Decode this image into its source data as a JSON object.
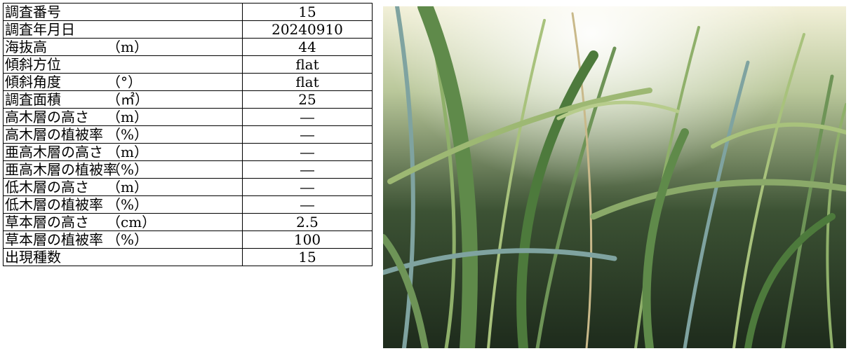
{
  "table": {
    "rows": [
      {
        "label": "調査番号",
        "unit": "",
        "value": "15"
      },
      {
        "label": "調査年月日",
        "unit": "",
        "value": "20240910"
      },
      {
        "label": "海抜高",
        "unit": "（m）",
        "value": "44"
      },
      {
        "label": "傾斜方位",
        "unit": "",
        "value": "flat"
      },
      {
        "label": "傾斜角度",
        "unit": "（°）",
        "value": "flat"
      },
      {
        "label": "調査面積",
        "unit": "（㎡）",
        "value": "25"
      },
      {
        "label": "高木層の高さ",
        "unit": "（m）",
        "value": "―"
      },
      {
        "label": "高木層の植被率",
        "unit": "（%）",
        "value": "―"
      },
      {
        "label": "亜高木層の高さ",
        "unit": "（m）",
        "value": "―"
      },
      {
        "label": "亜高木層の植被率",
        "unit": "（%）",
        "value": "―"
      },
      {
        "label": "低木層の高さ",
        "unit": "（m）",
        "value": "―"
      },
      {
        "label": "低木層の植被率",
        "unit": "（%）",
        "value": "―"
      },
      {
        "label": "草本層の高さ",
        "unit": "（cm）",
        "value": "2.5"
      },
      {
        "label": "草本層の植被率",
        "unit": "（%）",
        "value": "100"
      },
      {
        "label": "出現種数",
        "unit": "",
        "value": "15"
      }
    ]
  },
  "photo": {
    "colors": {
      "bright": "#f2f0d8",
      "dark": "#1e2b1c",
      "grass_light": "#8fb06a",
      "grass_mid": "#5f8a4a",
      "grass_blue": "#7fa3a0",
      "stem": "#c9b98a"
    }
  }
}
